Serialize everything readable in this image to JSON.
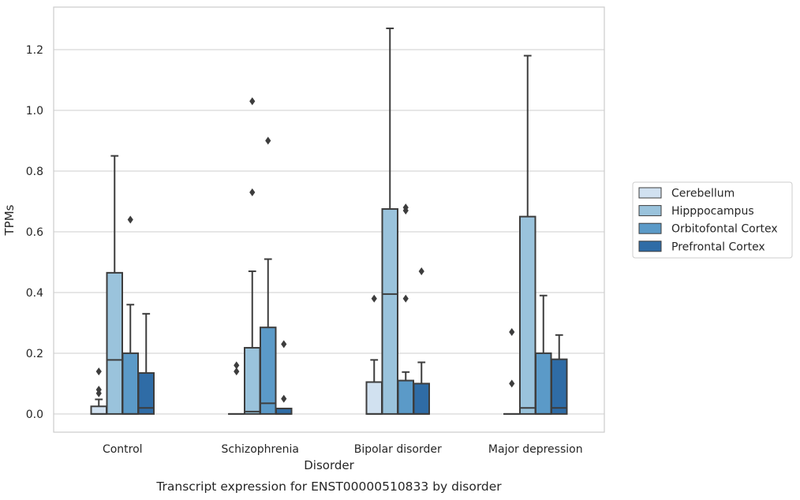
{
  "chart_data": {
    "type": "box",
    "title": "",
    "caption": "Transcript expression for ENST00000510833 by disorder",
    "xlabel": "Disorder",
    "ylabel": "TPMs",
    "ylim": [
      -0.06,
      1.34
    ],
    "yticks": [
      0.0,
      0.2,
      0.4,
      0.6,
      0.8,
      1.0,
      1.2
    ],
    "ytick_labels": [
      "0.0",
      "0.2",
      "0.4",
      "0.6",
      "0.8",
      "1.0",
      "1.2"
    ],
    "grid": "horizontal",
    "legend_position": "right",
    "categories": [
      "Control",
      "Schizophrenia",
      "Bipolar disorder",
      "Major depression"
    ],
    "series": [
      {
        "name": "Cerebellum",
        "color": "#d1e1f0",
        "boxes": [
          {
            "q1": 0.0,
            "median": 0.0,
            "q3": 0.025,
            "whisker_low": 0.0,
            "whisker_high": 0.048,
            "outliers": [
              0.068,
              0.08,
              0.14
            ]
          },
          {
            "q1": 0.0,
            "median": 0.0,
            "q3": 0.0,
            "whisker_low": 0.0,
            "whisker_high": 0.0,
            "outliers": [
              0.14,
              0.16
            ]
          },
          {
            "q1": 0.0,
            "median": 0.0,
            "q3": 0.105,
            "whisker_low": 0.0,
            "whisker_high": 0.178,
            "outliers": [
              0.38
            ]
          },
          {
            "q1": 0.0,
            "median": 0.0,
            "q3": 0.0,
            "whisker_low": 0.0,
            "whisker_high": 0.0,
            "outliers": [
              0.1,
              0.27
            ]
          }
        ]
      },
      {
        "name": "Hipppocampus",
        "color": "#9ac3dc",
        "boxes": [
          {
            "q1": 0.0,
            "median": 0.178,
            "q3": 0.465,
            "whisker_low": 0.0,
            "whisker_high": 0.85,
            "outliers": []
          },
          {
            "q1": 0.0,
            "median": 0.008,
            "q3": 0.218,
            "whisker_low": 0.0,
            "whisker_high": 0.47,
            "outliers": [
              0.73,
              1.03
            ]
          },
          {
            "q1": 0.0,
            "median": 0.395,
            "q3": 0.675,
            "whisker_low": 0.0,
            "whisker_high": 1.27,
            "outliers": []
          },
          {
            "q1": 0.0,
            "median": 0.02,
            "q3": 0.65,
            "whisker_low": 0.0,
            "whisker_high": 1.18,
            "outliers": []
          }
        ]
      },
      {
        "name": "Orbitofontal Cortex",
        "color": "#5b9ac8",
        "boxes": [
          {
            "q1": 0.0,
            "median": 0.0,
            "q3": 0.2,
            "whisker_low": 0.0,
            "whisker_high": 0.36,
            "outliers": [
              0.64
            ]
          },
          {
            "q1": 0.0,
            "median": 0.035,
            "q3": 0.285,
            "whisker_low": 0.0,
            "whisker_high": 0.51,
            "outliers": [
              0.9
            ]
          },
          {
            "q1": 0.0,
            "median": 0.0,
            "q3": 0.11,
            "whisker_low": 0.0,
            "whisker_high": 0.138,
            "outliers": [
              0.38,
              0.67,
              0.68
            ]
          },
          {
            "q1": 0.0,
            "median": 0.0,
            "q3": 0.2,
            "whisker_low": 0.0,
            "whisker_high": 0.39,
            "outliers": []
          }
        ]
      },
      {
        "name": "Prefrontal Cortex",
        "color": "#2f6ca6",
        "boxes": [
          {
            "q1": 0.0,
            "median": 0.02,
            "q3": 0.135,
            "whisker_low": 0.0,
            "whisker_high": 0.33,
            "outliers": []
          },
          {
            "q1": 0.0,
            "median": 0.0,
            "q3": 0.018,
            "whisker_low": 0.0,
            "whisker_high": 0.018,
            "outliers": [
              0.05,
              0.23
            ]
          },
          {
            "q1": 0.0,
            "median": 0.0,
            "q3": 0.1,
            "whisker_low": 0.0,
            "whisker_high": 0.17,
            "outliers": [
              0.47
            ]
          },
          {
            "q1": 0.0,
            "median": 0.02,
            "q3": 0.18,
            "whisker_low": 0.0,
            "whisker_high": 0.26,
            "outliers": []
          }
        ]
      }
    ]
  }
}
